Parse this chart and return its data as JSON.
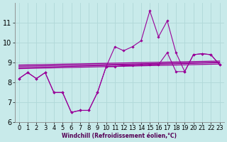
{
  "xlabel": "Windchill (Refroidissement éolien,°C)",
  "x": [
    0,
    1,
    2,
    3,
    4,
    5,
    6,
    7,
    8,
    9,
    10,
    11,
    12,
    13,
    14,
    15,
    16,
    17,
    18,
    19,
    20,
    21,
    22,
    23
  ],
  "zigzag": [
    8.2,
    8.5,
    8.2,
    8.5,
    7.5,
    7.5,
    6.5,
    6.6,
    6.6,
    7.5,
    8.8,
    9.8,
    9.6,
    9.8,
    10.1,
    11.6,
    10.3,
    11.1,
    9.5,
    8.55,
    9.4,
    9.45,
    9.4,
    8.9
  ],
  "line_low": [
    8.2,
    8.5,
    8.2,
    8.5,
    7.5,
    7.5,
    6.5,
    6.6,
    6.6,
    7.5,
    8.8,
    8.8,
    8.85,
    8.85,
    8.9,
    8.9,
    8.9,
    9.5,
    8.55,
    8.55,
    9.4,
    9.45,
    9.4,
    8.9
  ],
  "trend1_x": [
    0,
    23
  ],
  "trend1_y": [
    8.75,
    9.0
  ],
  "trend2_x": [
    0,
    23
  ],
  "trend2_y": [
    8.85,
    9.05
  ],
  "trend3_x": [
    0,
    23
  ],
  "trend3_y": [
    8.9,
    9.1
  ],
  "trend4_x": [
    0,
    23
  ],
  "trend4_y": [
    8.7,
    8.95
  ],
  "ylim": [
    6,
    12
  ],
  "xlim": [
    -0.5,
    23.5
  ],
  "yticks": [
    6,
    7,
    8,
    9,
    10,
    11
  ],
  "color": "#990099",
  "bg_color": "#c8eaea",
  "grid_color": "#b0d8d8",
  "tick_fontsize": 6.5
}
